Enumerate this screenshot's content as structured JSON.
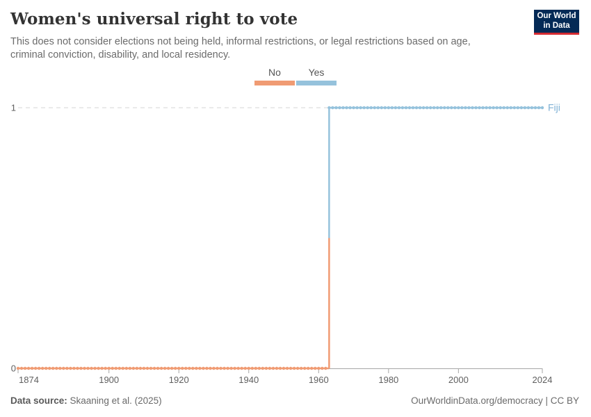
{
  "header": {
    "title": "Women's universal right to vote",
    "subtitle": "This does not consider elections not being held, informal restrictions, or legal restrictions based on age, criminal conviction, disability, and local residency.",
    "logo": {
      "line1": "Our World",
      "line2": "in Data",
      "bg_color": "#042A56",
      "accent_color": "#D42B32"
    }
  },
  "legend": {
    "entries": [
      {
        "label": "No",
        "color": "#F09B73"
      },
      {
        "label": "Yes",
        "color": "#95C2DC"
      }
    ]
  },
  "chart_data": {
    "type": "line",
    "title": "Women's universal right to vote",
    "xlim": [
      1874,
      2024
    ],
    "ylim": [
      0,
      1
    ],
    "x_ticks": [
      1874,
      1900,
      1920,
      1940,
      1960,
      1980,
      2000,
      2024
    ],
    "y_ticks": [
      0,
      1
    ],
    "grid": "dashed-top-solid-baseline",
    "legend_position": "top-center",
    "series": [
      {
        "name": "Fiji",
        "label_color": "#7FB1D5",
        "segments": [
          {
            "label": "No",
            "value": 0,
            "start_year": 1874,
            "end_year": 1962,
            "color": "#F09B73"
          },
          {
            "label": "Yes",
            "value": 1,
            "start_year": 1963,
            "end_year": 2024,
            "color": "#95C2DC"
          }
        ]
      }
    ],
    "colors": {
      "gridline": "#D6D6D6",
      "axis": "#A6A6A6",
      "tick_text": "#5F5F5F"
    }
  },
  "footer": {
    "source_label": "Data source:",
    "source_value": " Skaaning et al. (2025)",
    "right_text": "OurWorldinData.org/democracy | CC BY"
  }
}
